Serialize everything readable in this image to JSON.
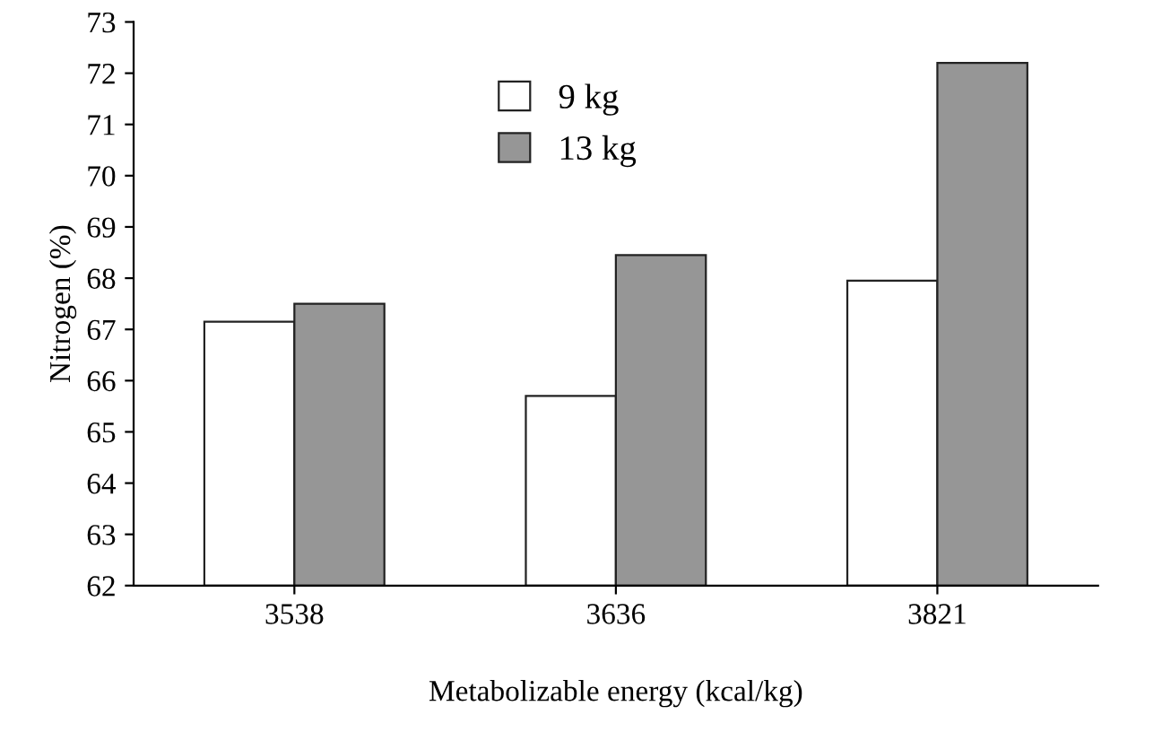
{
  "chart_data": {
    "type": "bar",
    "xlabel": "Metabolizable energy (kcal/kg)",
    "ylabel": "Nitrogen (%)",
    "categories": [
      "3538",
      "3636",
      "3821"
    ],
    "series": [
      {
        "name": "9 kg",
        "color": "#ffffff",
        "values": [
          67.15,
          65.7,
          67.95
        ]
      },
      {
        "name": "13 kg",
        "color": "#969696",
        "values": [
          67.5,
          68.45,
          72.2
        ]
      }
    ],
    "ylim": [
      62,
      73
    ],
    "yticks": [
      62,
      63,
      64,
      65,
      66,
      67,
      68,
      69,
      70,
      71,
      72,
      73
    ],
    "grid": false,
    "legend": "top"
  }
}
